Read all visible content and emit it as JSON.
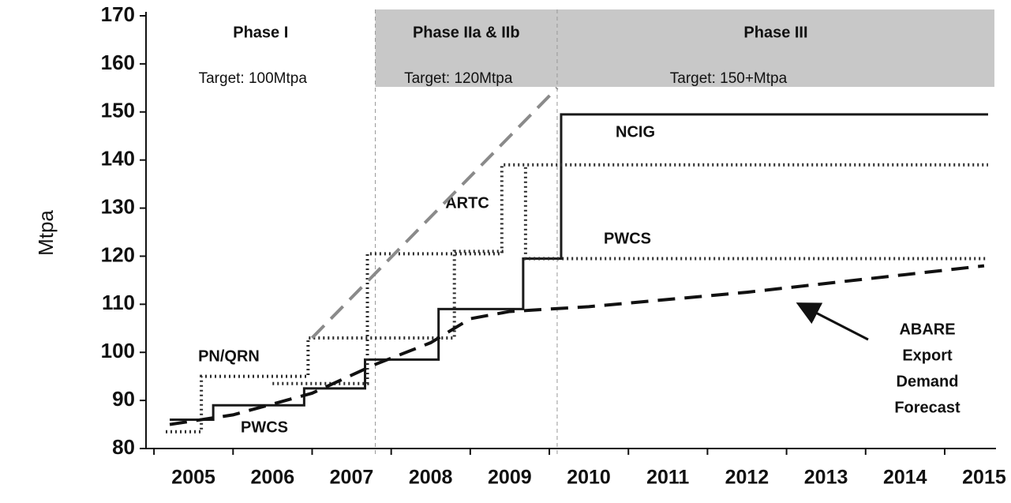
{
  "chart_data": {
    "type": "line",
    "y_label": "Mtpa",
    "xlim": [
      2004.4,
      2015.15
    ],
    "xticks": [
      2005,
      2006,
      2007,
      2008,
      2009,
      2010,
      2011,
      2012,
      2013,
      2014,
      2015
    ],
    "ylim": [
      80,
      170
    ],
    "yticks": [
      80,
      90,
      100,
      110,
      120,
      130,
      140,
      150,
      160,
      170
    ],
    "phases": [
      {
        "label": "Phase I",
        "target": "Target: 100Mtpa",
        "start": 2004.4,
        "end": 2007.3,
        "shaded": false
      },
      {
        "label": "Phase IIa & IIb",
        "target": "Target: 120Mtpa",
        "start": 2007.3,
        "end": 2009.6,
        "shaded": true
      },
      {
        "label": "Phase III",
        "target": "Target: 150+Mtpa",
        "start": 2009.6,
        "end": 2015.15,
        "shaded": true
      }
    ],
    "series": [
      {
        "name": "NCIG",
        "color": "#1a1a1a",
        "style": "solid",
        "x": [
          2004.7,
          2005.25,
          2005.25,
          2006.4,
          2006.4,
          2007.17,
          2007.17,
          2008.1,
          2008.1,
          2009.17,
          2009.17,
          2009.65,
          2009.65,
          2015.05
        ],
        "values": [
          86,
          86,
          89,
          89,
          92.5,
          92.5,
          98.5,
          98.5,
          109,
          109,
          119.5,
          119.5,
          149.5,
          149.5
        ]
      },
      {
        "name": "PN/QRN",
        "color": "#2a2a2a",
        "style": "dotted",
        "x": [
          2004.65,
          2005.1,
          2005.1,
          2006.45,
          2006.45,
          2008.3,
          2008.3,
          2008.95
        ],
        "values": [
          83.5,
          83.5,
          95,
          95,
          103,
          103,
          121,
          121
        ]
      },
      {
        "name": "ARTC",
        "color": "#2a2a2a",
        "style": "dotted",
        "x": [
          2006.0,
          2007.2,
          2007.2,
          2008.9,
          2008.9,
          2015.05
        ],
        "values": [
          93.5,
          93.5,
          120.5,
          120.5,
          139,
          139
        ]
      },
      {
        "name": "PWCS",
        "color": "#2a2a2a",
        "style": "dotted",
        "x": [
          2009.2,
          2009.2,
          2015.05
        ],
        "values": [
          138.5,
          119.5,
          119.5
        ]
      },
      {
        "color": "#8a8a8a",
        "style": "dashed",
        "x": [
          2006.5,
          2009.6
        ],
        "values": [
          103,
          155
        ]
      },
      {
        "color": "#111111",
        "style": "dashed",
        "x": [
          2004.7,
          2005.5,
          2006.5,
          2007.3,
          2008.0,
          2008.5,
          2009.0,
          2010.0,
          2012.0,
          2015.0
        ],
        "values": [
          85,
          87,
          91.5,
          97.5,
          102,
          107,
          108.5,
          109.5,
          112.5,
          118
        ]
      }
    ],
    "annotations": [
      {
        "text": "PWCS"
      },
      {
        "lines": [
          "ABARE",
          "Export",
          "Demand",
          "Forecast"
        ]
      }
    ]
  }
}
